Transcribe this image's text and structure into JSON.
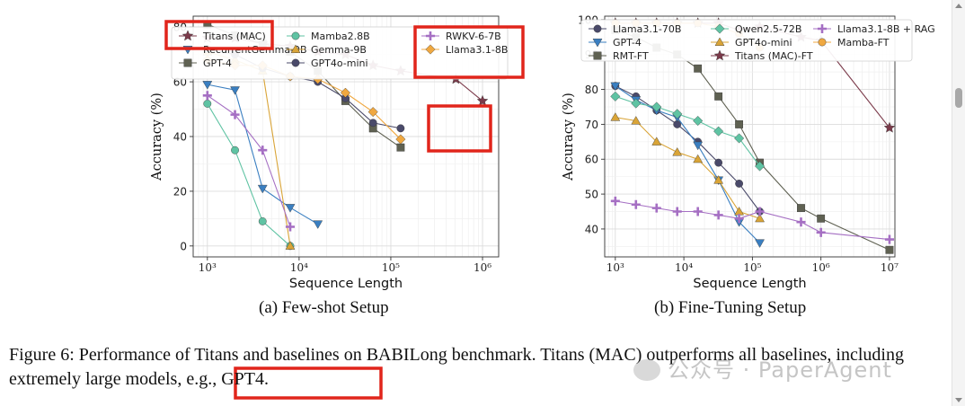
{
  "chart_data": [
    {
      "type": "line",
      "xscale": "log",
      "xlabel": "Sequence Length",
      "ylabel": "Accuracy (%)",
      "xlim": [
        700,
        1500000
      ],
      "ylim": [
        -4,
        84
      ],
      "xticks": [
        1000,
        10000,
        100000,
        1000000
      ],
      "xtick_labels": [
        "10³",
        "10⁴",
        "10⁵",
        "10⁶"
      ],
      "yticks": [
        0,
        20,
        40,
        60,
        80
      ],
      "ytick_labels": [
        "0",
        "20",
        "40",
        "60",
        "80"
      ],
      "grid": true,
      "legend_placement": "top",
      "series": [
        {
          "name": "Titans (MAC)",
          "color": "#7b3a4a",
          "marker": "star",
          "x": [
            1000,
            2000,
            4000,
            8000,
            16000,
            32000,
            64000,
            128000,
            512000,
            1000000
          ],
          "y": [
            76,
            76,
            74,
            73,
            71,
            70,
            66,
            64,
            61,
            53
          ]
        },
        {
          "name": "RecurrentGemma-9B",
          "color": "#3a7fc1",
          "marker": "tri_down",
          "x": [
            1000,
            2000,
            4000,
            8000,
            16000
          ],
          "y": [
            59,
            57,
            21,
            14,
            8
          ]
        },
        {
          "name": "GPT-4",
          "color": "#5f6152",
          "marker": "square",
          "x": [
            1000,
            2000,
            4000,
            8000,
            16000,
            32000,
            64000,
            128000
          ],
          "y": [
            81,
            77,
            74,
            71,
            64,
            53,
            43,
            36
          ]
        },
        {
          "name": "Mamba2.8B",
          "color": "#5fc3a3",
          "marker": "circle",
          "x": [
            1000,
            2000,
            4000,
            8000
          ],
          "y": [
            52,
            35,
            9,
            0
          ]
        },
        {
          "name": "Gemma-9B",
          "color": "#d9a437",
          "marker": "tri_up",
          "x": [
            1000,
            2000,
            4000,
            8000
          ],
          "y": [
            71,
            68,
            64,
            0
          ]
        },
        {
          "name": "GPT4o-mini",
          "color": "#4a4a6a",
          "marker": "circle",
          "x": [
            1000,
            2000,
            4000,
            8000,
            16000,
            32000,
            64000,
            128000
          ],
          "y": [
            72,
            70,
            65,
            62,
            60,
            54,
            45,
            43
          ]
        },
        {
          "name": "RWKV-6-7B",
          "color": "#a56fc3",
          "marker": "plus",
          "x": [
            1000,
            2000,
            4000,
            8000
          ],
          "y": [
            55,
            48,
            35,
            7
          ]
        },
        {
          "name": "Llama3.1-8B",
          "color": "#f0a840",
          "marker": "diamond",
          "x": [
            1000,
            2000,
            4000,
            8000,
            16000,
            32000,
            64000,
            128000
          ],
          "y": [
            68,
            66,
            66,
            62,
            61,
            56,
            49,
            39
          ]
        }
      ],
      "subcaption": "(a) Few-shot Setup"
    },
    {
      "type": "line",
      "xscale": "log",
      "xlabel": "Sequence Length",
      "ylabel": "Accuracy (%)",
      "xlim": [
        700,
        12000000
      ],
      "ylim": [
        32,
        101
      ],
      "xticks": [
        1000,
        10000,
        100000,
        1000000,
        10000000
      ],
      "xtick_labels": [
        "10³",
        "10⁴",
        "10⁵",
        "10⁶",
        "10⁷"
      ],
      "yticks": [
        40,
        50,
        60,
        70,
        80,
        90,
        100
      ],
      "ytick_labels": [
        "40",
        "50",
        "60",
        "70",
        "80",
        "90",
        "100"
      ],
      "grid": true,
      "legend_placement": "top",
      "series": [
        {
          "name": "Llama3.1-70B",
          "color": "#4a4a6a",
          "marker": "circle",
          "x": [
            1000,
            2000,
            4000,
            8000,
            16000,
            32000,
            64000,
            128000
          ],
          "y": [
            81,
            78,
            74,
            70,
            65,
            59,
            53,
            45
          ]
        },
        {
          "name": "GPT-4",
          "color": "#3a7fc1",
          "marker": "tri_down",
          "x": [
            1000,
            2000,
            4000,
            8000,
            16000,
            32000,
            64000,
            128000
          ],
          "y": [
            81,
            77,
            74,
            72,
            64,
            54,
            42,
            36
          ]
        },
        {
          "name": "RMT-FT",
          "color": "#5f6152",
          "marker": "square",
          "x": [
            1000,
            2000,
            4000,
            8000,
            16000,
            32000,
            64000,
            128000,
            512000,
            1000000,
            10000000
          ],
          "y": [
            97,
            95,
            92,
            90,
            86,
            78,
            70,
            59,
            46,
            43,
            34
          ]
        },
        {
          "name": "Qwen2.5-72B",
          "color": "#5fc3a3",
          "marker": "diamond",
          "x": [
            1000,
            2000,
            4000,
            8000,
            16000,
            32000,
            64000,
            128000
          ],
          "y": [
            78,
            76,
            75,
            73,
            71,
            68,
            66,
            58
          ]
        },
        {
          "name": "GPT4o-mini",
          "color": "#d9a437",
          "marker": "tri_up",
          "x": [
            1000,
            2000,
            4000,
            8000,
            16000,
            32000,
            64000,
            128000
          ],
          "y": [
            72,
            71,
            65,
            62,
            60,
            54,
            45,
            43
          ]
        },
        {
          "name": "Titans (MAC)-FT",
          "color": "#7b3a4a",
          "marker": "star",
          "x": [
            1000,
            2000,
            4000,
            8000,
            16000,
            32000,
            64000,
            128000,
            512000,
            1000000,
            10000000
          ],
          "y": [
            99,
            99,
            99,
            99,
            99,
            99,
            97,
            98,
            95,
            94,
            69
          ]
        },
        {
          "name": "Llama3.1-8B + RAG",
          "color": "#a56fc3",
          "marker": "plus",
          "x": [
            1000,
            2000,
            4000,
            8000,
            16000,
            32000,
            64000,
            128000,
            512000,
            1000000,
            10000000
          ],
          "y": [
            48,
            47,
            46,
            45,
            45,
            44,
            43,
            45,
            42,
            39,
            37
          ]
        },
        {
          "name": "Mamba-FT",
          "color": "#f0a840",
          "marker": "circle",
          "x": [
            1000,
            2000,
            4000,
            8000,
            16000,
            32000,
            64000,
            128000
          ],
          "y": [
            99,
            99,
            99,
            99,
            99,
            98,
            96,
            92
          ]
        }
      ],
      "subcaption": "(b) Fine-Tuning Setup"
    }
  ],
  "caption": {
    "line1": "Figure 6: Performance of Titans and baselines on BABILong benchmark. Titans (MAC) outperforms all baselines, including",
    "line2": "extremely large models, e.g., GPT4."
  },
  "watermark": "公众号 · PaperAgent",
  "highlight_color": "#e1251b"
}
